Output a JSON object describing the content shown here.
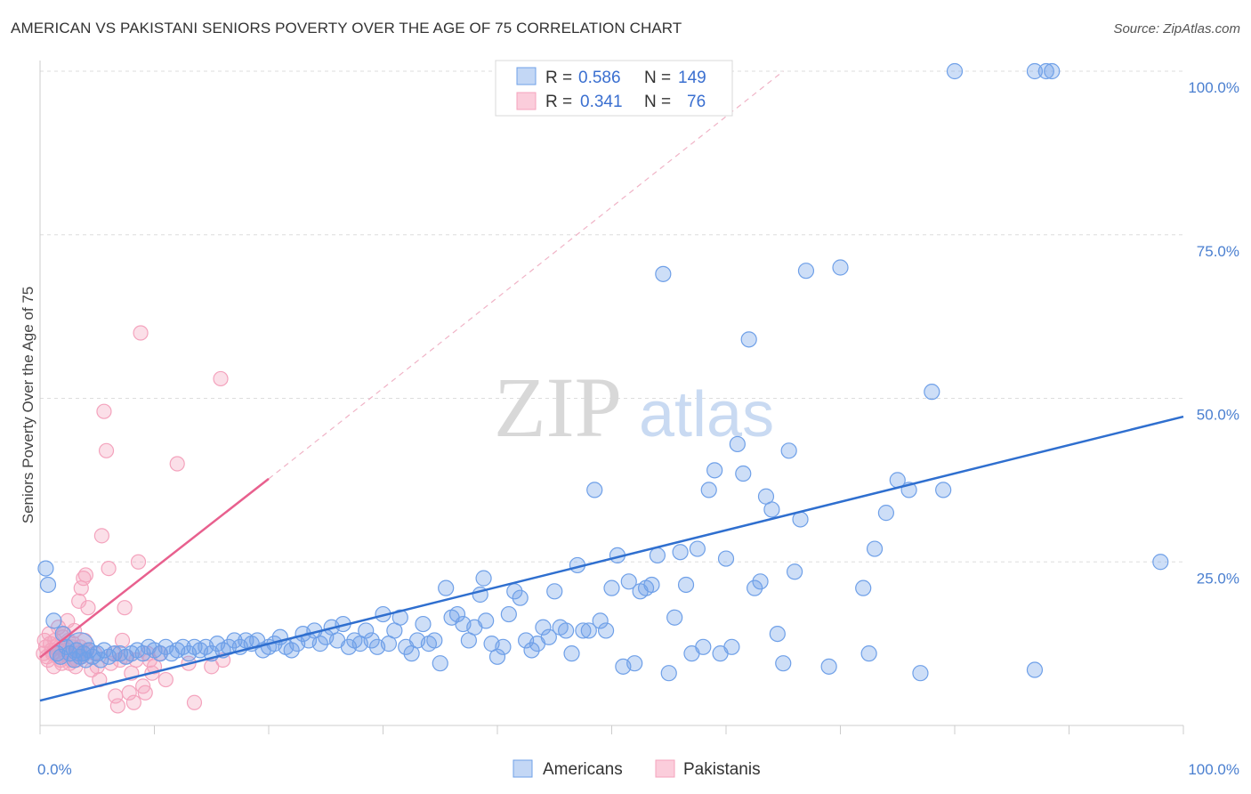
{
  "title": "AMERICAN VS PAKISTANI SENIORS POVERTY OVER THE AGE OF 75 CORRELATION CHART",
  "source": "Source: ZipAtlas.com",
  "watermark": {
    "zip": "ZIP",
    "atlas": "atlas"
  },
  "colors": {
    "blue": "#6fa0e8",
    "blue_line": "#2f6fcf",
    "pink": "#f4a3bd",
    "pink_line": "#e8608e"
  },
  "chart_data": {
    "type": "scatter",
    "ylabel": "Seniors Poverty Over the Age of 75",
    "xlim": [
      0,
      100
    ],
    "ylim": [
      0,
      100
    ],
    "x_tick_labels": [
      "0.0%",
      "100.0%"
    ],
    "y_tick_labels": [
      "25.0%",
      "50.0%",
      "75.0%",
      "100.0%"
    ],
    "y_ticks": [
      25,
      50,
      75,
      100
    ],
    "grid": true,
    "legend": {
      "placement": "top-center",
      "rows": [
        {
          "r_label": "R =",
          "r_value": "0.586",
          "n_label": "N =",
          "n_value": "149"
        },
        {
          "r_label": "R =",
          "r_value": "0.341",
          "n_label": "N =",
          "n_value": "76"
        }
      ]
    },
    "series": [
      {
        "name": "Americans",
        "color": "#6fa0e8",
        "trend": {
          "x": [
            0,
            100
          ],
          "y": [
            3.8,
            47.2
          ]
        },
        "points": [
          [
            0.5,
            24
          ],
          [
            0.7,
            21.5
          ],
          [
            1.2,
            16
          ],
          [
            1.5,
            11
          ],
          [
            1.8,
            10.5
          ],
          [
            2,
            14
          ],
          [
            2.3,
            12
          ],
          [
            2.6,
            11
          ],
          [
            3,
            10
          ],
          [
            3.2,
            11.5
          ],
          [
            3.5,
            10.5
          ],
          [
            3.8,
            11
          ],
          [
            4,
            10
          ],
          [
            4.3,
            11.5
          ],
          [
            4.6,
            10.5
          ],
          [
            5,
            11
          ],
          [
            5.3,
            10
          ],
          [
            5.6,
            11.5
          ],
          [
            6,
            10.5
          ],
          [
            6.5,
            11
          ],
          [
            7,
            11
          ],
          [
            7.5,
            10.5
          ],
          [
            8,
            11
          ],
          [
            8.5,
            11.5
          ],
          [
            9,
            11
          ],
          [
            9.5,
            12
          ],
          [
            10,
            11.5
          ],
          [
            10.5,
            11
          ],
          [
            11,
            12
          ],
          [
            11.5,
            11
          ],
          [
            12,
            11.5
          ],
          [
            12.5,
            12
          ],
          [
            13,
            11
          ],
          [
            13.5,
            12
          ],
          [
            14,
            11.5
          ],
          [
            14.5,
            12
          ],
          [
            15,
            11
          ],
          [
            15.5,
            12.5
          ],
          [
            16,
            11.5
          ],
          [
            16.5,
            12
          ],
          [
            17,
            13
          ],
          [
            17.5,
            12
          ],
          [
            18,
            13
          ],
          [
            18.5,
            12.5
          ],
          [
            19,
            13
          ],
          [
            19.5,
            11.5
          ],
          [
            20,
            12
          ],
          [
            20.5,
            12.5
          ],
          [
            21,
            13.5
          ],
          [
            21.5,
            12
          ],
          [
            22,
            11.5
          ],
          [
            22.5,
            12.5
          ],
          [
            23,
            14
          ],
          [
            23.5,
            13
          ],
          [
            24,
            14.5
          ],
          [
            24.5,
            12.5
          ],
          [
            25,
            13.5
          ],
          [
            25.5,
            15
          ],
          [
            26,
            13
          ],
          [
            26.5,
            15.5
          ],
          [
            27,
            12
          ],
          [
            27.5,
            13
          ],
          [
            28,
            12.5
          ],
          [
            28.5,
            14.5
          ],
          [
            29,
            13
          ],
          [
            29.5,
            12
          ],
          [
            30,
            17
          ],
          [
            30.5,
            12.5
          ],
          [
            31,
            14.5
          ],
          [
            31.5,
            16.5
          ],
          [
            32,
            12
          ],
          [
            32.5,
            11
          ],
          [
            33,
            13
          ],
          [
            33.5,
            15.5
          ],
          [
            34,
            12.5
          ],
          [
            34.5,
            13
          ],
          [
            35,
            9.5
          ],
          [
            35.5,
            21
          ],
          [
            36,
            16.5
          ],
          [
            36.5,
            17
          ],
          [
            37,
            15.5
          ],
          [
            37.5,
            13
          ],
          [
            38,
            15
          ],
          [
            38.5,
            20
          ],
          [
            38.8,
            22.5
          ],
          [
            39,
            16
          ],
          [
            39.5,
            12.5
          ],
          [
            40,
            10.5
          ],
          [
            40.5,
            12
          ],
          [
            41,
            17
          ],
          [
            41.5,
            20.5
          ],
          [
            42,
            19.5
          ],
          [
            42.5,
            13
          ],
          [
            43,
            11.5
          ],
          [
            43.5,
            12.5
          ],
          [
            44,
            15
          ],
          [
            44.5,
            13.5
          ],
          [
            45,
            20.5
          ],
          [
            45.5,
            15
          ],
          [
            46,
            14.5
          ],
          [
            46.5,
            11
          ],
          [
            47,
            24.5
          ],
          [
            47.5,
            14.5
          ],
          [
            48,
            14.5
          ],
          [
            48.5,
            36
          ],
          [
            49,
            16
          ],
          [
            49.5,
            14.5
          ],
          [
            50,
            21
          ],
          [
            50.5,
            26
          ],
          [
            51,
            9
          ],
          [
            51.5,
            22
          ],
          [
            52,
            9.5
          ],
          [
            52.5,
            20.5
          ],
          [
            53,
            21
          ],
          [
            53.5,
            21.5
          ],
          [
            54,
            26
          ],
          [
            54.5,
            69
          ],
          [
            55,
            8
          ],
          [
            55.5,
            16.5
          ],
          [
            56,
            26.5
          ],
          [
            56.5,
            21.5
          ],
          [
            57,
            11
          ],
          [
            57.5,
            27
          ],
          [
            58,
            12
          ],
          [
            58.5,
            36
          ],
          [
            59,
            39
          ],
          [
            59.5,
            11
          ],
          [
            60,
            25.5
          ],
          [
            60.5,
            12
          ],
          [
            61,
            43
          ],
          [
            61.5,
            38.5
          ],
          [
            62,
            59
          ],
          [
            62.5,
            21
          ],
          [
            63,
            22
          ],
          [
            63.5,
            35
          ],
          [
            64,
            33
          ],
          [
            64.5,
            14
          ],
          [
            65,
            9.5
          ],
          [
            65.5,
            42
          ],
          [
            66,
            23.5
          ],
          [
            66.5,
            31.5
          ],
          [
            67,
            69.5
          ],
          [
            69,
            9
          ],
          [
            70,
            70
          ],
          [
            72,
            21
          ],
          [
            72.5,
            11
          ],
          [
            73,
            27
          ],
          [
            74,
            32.5
          ],
          [
            75,
            37.5
          ],
          [
            76,
            36
          ],
          [
            77,
            8
          ],
          [
            78,
            51
          ],
          [
            79,
            36
          ],
          [
            87,
            8.5
          ],
          [
            98,
            25
          ],
          [
            80,
            100
          ],
          [
            87,
            100
          ],
          [
            88,
            100
          ],
          [
            88.5,
            100
          ]
        ]
      },
      {
        "name": "Pakistanis",
        "color": "#f4a3bd",
        "trend": {
          "x": [
            0,
            20
          ],
          "y": [
            10.4,
            37.7
          ]
        },
        "trend_ext": {
          "x": [
            20,
            65
          ],
          "y": [
            37.7,
            100
          ]
        },
        "points": [
          [
            0.3,
            11
          ],
          [
            0.5,
            12
          ],
          [
            0.7,
            10
          ],
          [
            0.9,
            12.5
          ],
          [
            1.1,
            11
          ],
          [
            1.3,
            13
          ],
          [
            1.5,
            10.5
          ],
          [
            1.7,
            12
          ],
          [
            1.9,
            9.5
          ],
          [
            2.1,
            14
          ],
          [
            2.3,
            11.5
          ],
          [
            2.5,
            13
          ],
          [
            2.7,
            10
          ],
          [
            2.9,
            12.5
          ],
          [
            3.1,
            9
          ],
          [
            3.3,
            11
          ],
          [
            3.5,
            12
          ],
          [
            3.7,
            10.5
          ],
          [
            3.9,
            13
          ],
          [
            4.1,
            11.5
          ],
          [
            0.4,
            13
          ],
          [
            0.6,
            10.5
          ],
          [
            0.8,
            14
          ],
          [
            1,
            11.5
          ],
          [
            1.2,
            9
          ],
          [
            1.4,
            12
          ],
          [
            1.6,
            15
          ],
          [
            1.8,
            10
          ],
          [
            2,
            13.5
          ],
          [
            2.2,
            11
          ],
          [
            2.4,
            16
          ],
          [
            2.6,
            9.5
          ],
          [
            2.8,
            12
          ],
          [
            3,
            14.5
          ],
          [
            3.2,
            10
          ],
          [
            3.4,
            19
          ],
          [
            3.6,
            21
          ],
          [
            3.8,
            22.5
          ],
          [
            4,
            23
          ],
          [
            4.2,
            18
          ],
          [
            4.5,
            8.5
          ],
          [
            4.8,
            11
          ],
          [
            5,
            9
          ],
          [
            5.2,
            7
          ],
          [
            5.4,
            29
          ],
          [
            5.6,
            48
          ],
          [
            5.8,
            42
          ],
          [
            6,
            24
          ],
          [
            6.2,
            9.5
          ],
          [
            6.4,
            11
          ],
          [
            6.6,
            4.5
          ],
          [
            6.8,
            3
          ],
          [
            7,
            10
          ],
          [
            7.2,
            13
          ],
          [
            7.4,
            18
          ],
          [
            7.6,
            10.5
          ],
          [
            7.8,
            5
          ],
          [
            8,
            8
          ],
          [
            8.2,
            3.5
          ],
          [
            8.4,
            10
          ],
          [
            8.6,
            25
          ],
          [
            8.8,
            60
          ],
          [
            9,
            6
          ],
          [
            9.2,
            5
          ],
          [
            9.4,
            11
          ],
          [
            9.6,
            10
          ],
          [
            9.8,
            8
          ],
          [
            10,
            9
          ],
          [
            10.5,
            11
          ],
          [
            11,
            7
          ],
          [
            12,
            40
          ],
          [
            13,
            9.5
          ],
          [
            13.5,
            3.5
          ],
          [
            15,
            9
          ],
          [
            16,
            10
          ],
          [
            15.8,
            53
          ]
        ]
      }
    ]
  },
  "bottom_legend": [
    {
      "label": "Americans"
    },
    {
      "label": "Pakistanis"
    }
  ]
}
